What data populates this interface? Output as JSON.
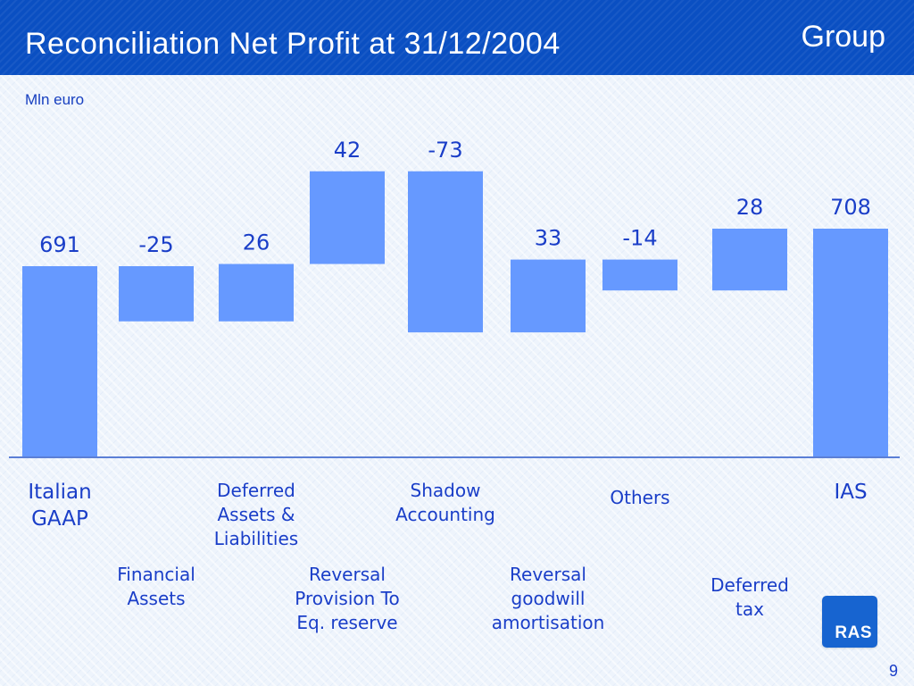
{
  "header": {
    "title": "Reconciliation Net Profit at 31/12/2004",
    "group_label": "Group"
  },
  "unit_label": "Mln euro",
  "logo_text": "RAS",
  "page_number": "9",
  "colors": {
    "header_bg": "#0a4fc2",
    "bar": "#6699ff",
    "text": "#1a3ec8",
    "baseline": "#5b7fd6"
  },
  "chart_data": {
    "type": "bar",
    "subtype": "waterfall",
    "categories": [
      "Italian\nGAAP",
      "Financial\nAssets",
      "Deferred\nAssets &\nLiabilities",
      "Reversal\nProvision To\nEq. reserve",
      "Shadow\nAccounting",
      "Reversal\ngoodwill\namortisation",
      "Others",
      "Deferred\ntax",
      "IAS"
    ],
    "values": [
      691,
      -25,
      26,
      42,
      -73,
      33,
      -14,
      28,
      708
    ],
    "data_labels": [
      "691",
      "-25",
      "26",
      "42",
      "-73",
      "33",
      "-14",
      "28",
      "708"
    ],
    "bar_kinds": [
      "total",
      "delta",
      "delta",
      "delta",
      "delta",
      "delta",
      "delta",
      "delta",
      "total"
    ],
    "ylim": [
      0,
      780
    ],
    "grid": false,
    "legend": "none"
  }
}
